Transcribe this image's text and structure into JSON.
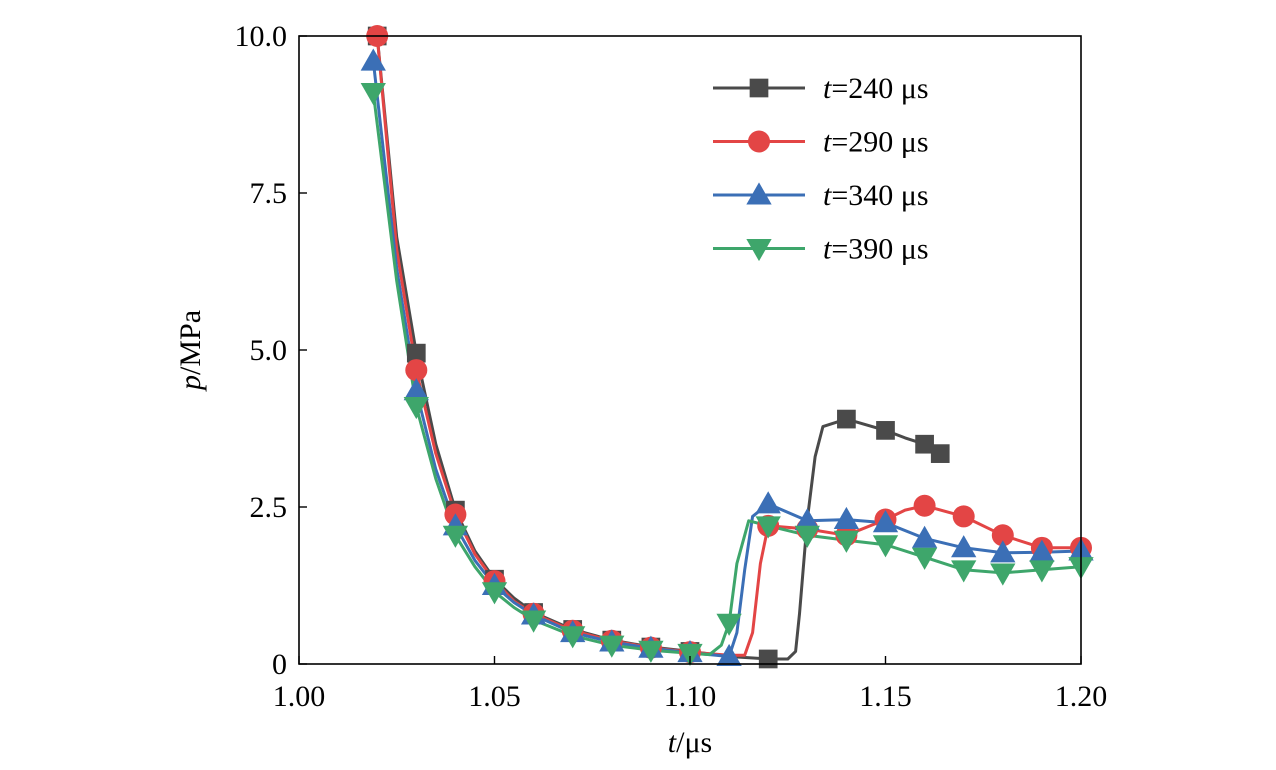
{
  "chart_data": {
    "type": "line",
    "title": "",
    "xlabel": {
      "var": "t",
      "unit": "/μs"
    },
    "ylabel": {
      "var": "p",
      "unit": "/MPa"
    },
    "xlim": [
      1.0,
      1.2
    ],
    "ylim": [
      0,
      10.0
    ],
    "xticks": [
      1.0,
      1.05,
      1.1,
      1.15,
      1.2
    ],
    "xtick_labels": [
      "1.00",
      "1.05",
      "1.10",
      "1.15",
      "1.20"
    ],
    "yticks": [
      0,
      2.5,
      5.0,
      7.5,
      10.0
    ],
    "ytick_labels": [
      "0",
      "2.5",
      "5.0",
      "7.5",
      "10.0"
    ],
    "grid": false,
    "legend_position": "top-right",
    "series": [
      {
        "name": "t=240 μs",
        "legend_var": "t",
        "legend_rest": "=240 μs",
        "color": "#4a4a4a",
        "marker": "square",
        "x": [
          1.02,
          1.025,
          1.03,
          1.035,
          1.04,
          1.045,
          1.05,
          1.055,
          1.06,
          1.07,
          1.08,
          1.09,
          1.1,
          1.11,
          1.12,
          1.125,
          1.127,
          1.128,
          1.13,
          1.132,
          1.134,
          1.14,
          1.15,
          1.155,
          1.16,
          1.164
        ],
        "y": [
          10.0,
          6.8,
          4.95,
          3.5,
          2.45,
          1.8,
          1.35,
          1.05,
          0.82,
          0.55,
          0.38,
          0.27,
          0.2,
          0.12,
          0.08,
          0.08,
          0.2,
          0.8,
          2.3,
          3.3,
          3.78,
          3.9,
          3.72,
          3.6,
          3.5,
          3.35
        ],
        "marker_x": [
          1.02,
          1.03,
          1.04,
          1.05,
          1.06,
          1.07,
          1.08,
          1.09,
          1.1,
          1.12,
          1.14,
          1.15,
          1.16,
          1.164
        ],
        "marker_y": [
          10.0,
          4.95,
          2.45,
          1.35,
          0.82,
          0.55,
          0.38,
          0.27,
          0.2,
          0.08,
          3.9,
          3.72,
          3.5,
          3.35
        ]
      },
      {
        "name": "t=290 μs",
        "legend_var": "t",
        "legend_rest": "=290 μs",
        "color": "#e34545",
        "marker": "circle",
        "x": [
          1.02,
          1.025,
          1.03,
          1.035,
          1.04,
          1.045,
          1.05,
          1.055,
          1.06,
          1.07,
          1.08,
          1.09,
          1.1,
          1.11,
          1.114,
          1.116,
          1.118,
          1.12,
          1.13,
          1.14,
          1.15,
          1.155,
          1.16,
          1.17,
          1.18,
          1.19,
          1.2
        ],
        "y": [
          10.0,
          6.6,
          4.68,
          3.35,
          2.38,
          1.75,
          1.32,
          1.0,
          0.8,
          0.53,
          0.37,
          0.26,
          0.19,
          0.14,
          0.14,
          0.5,
          1.6,
          2.2,
          2.15,
          2.05,
          2.3,
          2.45,
          2.52,
          2.35,
          2.05,
          1.85,
          1.85
        ],
        "marker_x": [
          1.02,
          1.03,
          1.04,
          1.05,
          1.06,
          1.07,
          1.08,
          1.09,
          1.1,
          1.12,
          1.13,
          1.14,
          1.15,
          1.16,
          1.17,
          1.18,
          1.19,
          1.2
        ],
        "marker_y": [
          10.0,
          4.68,
          2.38,
          1.32,
          0.8,
          0.53,
          0.37,
          0.26,
          0.19,
          2.2,
          2.15,
          2.05,
          2.3,
          2.52,
          2.35,
          2.05,
          1.85,
          1.85
        ]
      },
      {
        "name": "t=340 μs",
        "legend_var": "t",
        "legend_rest": "=340 μs",
        "color": "#3b6fb6",
        "marker": "triangle-up",
        "x": [
          1.019,
          1.025,
          1.03,
          1.035,
          1.04,
          1.045,
          1.05,
          1.055,
          1.06,
          1.07,
          1.08,
          1.09,
          1.1,
          1.11,
          1.112,
          1.114,
          1.116,
          1.12,
          1.13,
          1.14,
          1.15,
          1.16,
          1.17,
          1.18,
          1.19,
          1.2
        ],
        "y": [
          9.6,
          6.3,
          4.35,
          3.1,
          2.2,
          1.65,
          1.25,
          0.98,
          0.78,
          0.5,
          0.35,
          0.25,
          0.18,
          0.12,
          0.5,
          1.5,
          2.35,
          2.55,
          2.28,
          2.3,
          2.25,
          2.0,
          1.85,
          1.77,
          1.78,
          1.8
        ],
        "marker_x": [
          1.019,
          1.03,
          1.04,
          1.05,
          1.06,
          1.07,
          1.08,
          1.09,
          1.1,
          1.11,
          1.12,
          1.13,
          1.14,
          1.15,
          1.16,
          1.17,
          1.18,
          1.19,
          1.2
        ],
        "marker_y": [
          9.6,
          4.35,
          2.2,
          1.25,
          0.78,
          0.5,
          0.35,
          0.25,
          0.18,
          0.12,
          2.55,
          2.28,
          2.3,
          2.25,
          2.0,
          1.85,
          1.77,
          1.78,
          1.8
        ]
      },
      {
        "name": "t=390 μs",
        "legend_var": "t",
        "legend_rest": "=390 μs",
        "color": "#3ea66b",
        "marker": "triangle-down",
        "x": [
          1.019,
          1.025,
          1.03,
          1.035,
          1.04,
          1.045,
          1.05,
          1.055,
          1.06,
          1.07,
          1.08,
          1.09,
          1.1,
          1.105,
          1.108,
          1.11,
          1.112,
          1.115,
          1.12,
          1.13,
          1.14,
          1.15,
          1.16,
          1.17,
          1.18,
          1.19,
          1.2
        ],
        "y": [
          9.1,
          6.1,
          4.1,
          2.95,
          2.05,
          1.55,
          1.15,
          0.9,
          0.7,
          0.45,
          0.3,
          0.22,
          0.17,
          0.15,
          0.3,
          0.65,
          1.6,
          2.28,
          2.2,
          2.05,
          1.97,
          1.9,
          1.7,
          1.5,
          1.45,
          1.5,
          1.55
        ],
        "marker_x": [
          1.019,
          1.03,
          1.04,
          1.05,
          1.06,
          1.07,
          1.08,
          1.09,
          1.1,
          1.11,
          1.12,
          1.13,
          1.14,
          1.15,
          1.16,
          1.17,
          1.18,
          1.19,
          1.2
        ],
        "marker_y": [
          9.1,
          4.1,
          2.05,
          1.15,
          0.7,
          0.45,
          0.3,
          0.22,
          0.17,
          0.65,
          2.2,
          2.05,
          1.97,
          1.9,
          1.7,
          1.5,
          1.45,
          1.5,
          1.55
        ]
      }
    ]
  }
}
